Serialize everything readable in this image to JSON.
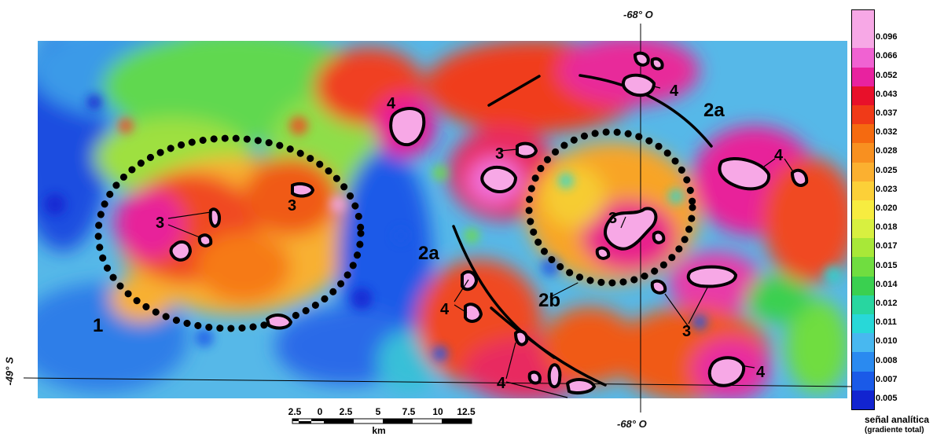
{
  "map": {
    "coord_labels": {
      "lon_top": "-68° O",
      "lon_bottom": "-68° O",
      "lat_left": "-49° S"
    },
    "feature_labels": {
      "label_1": "1",
      "label_2a": "2a",
      "label_2b": "2b",
      "label_3": "3",
      "label_4": "4"
    },
    "scale_bar": {
      "ticks": [
        "2.5",
        "0",
        "2.5",
        "5",
        "7.5",
        "10",
        "12.5"
      ],
      "unit": "km"
    }
  },
  "legend": {
    "values": [
      "0.096",
      "0.066",
      "0.052",
      "0.043",
      "0.037",
      "0.032",
      "0.028",
      "0.025",
      "0.023",
      "0.020",
      "0.018",
      "0.017",
      "0.015",
      "0.014",
      "0.012",
      "0.011",
      "0.010",
      "0.008",
      "0.007",
      "0.005"
    ],
    "colors": [
      "#f7a8e6",
      "#f062d2",
      "#e8229f",
      "#e8102a",
      "#f03a18",
      "#f56a10",
      "#f89020",
      "#fbb030",
      "#fcd038",
      "#f7ec40",
      "#d8f040",
      "#a8e838",
      "#70dd40",
      "#3ad050",
      "#28d6a0",
      "#28d8d8",
      "#48b8f0",
      "#2a8af0",
      "#1a5ae8",
      "#1224d0"
    ],
    "title": "señal analítica",
    "subtitle": "(gradiente total)"
  }
}
